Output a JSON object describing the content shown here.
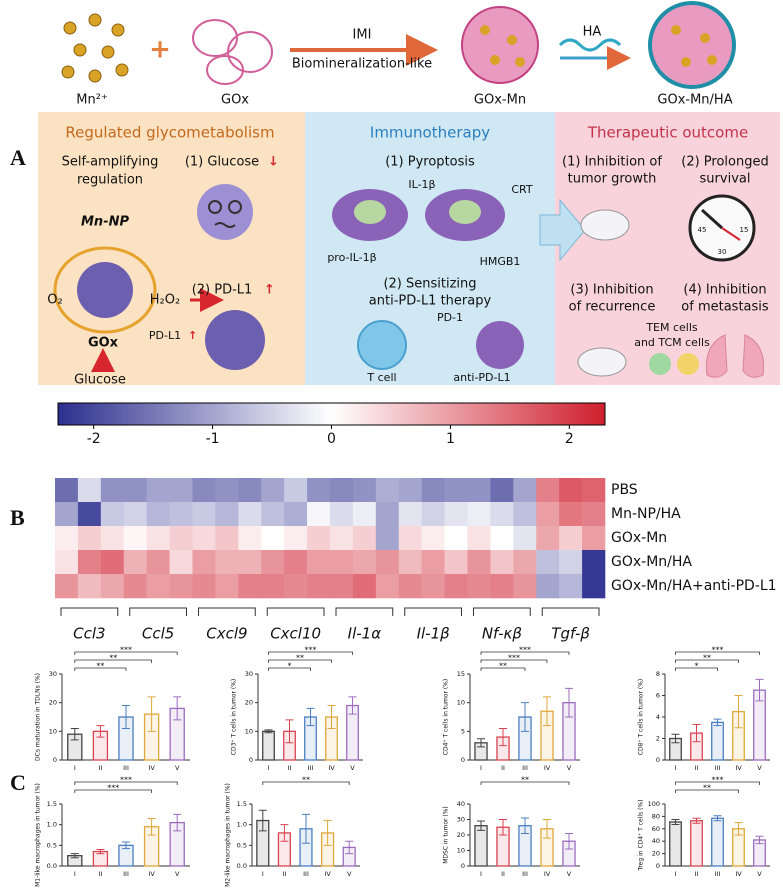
{
  "panel_labels": [
    "A",
    "B",
    "C"
  ],
  "schematic": {
    "mn": "Mn²⁺",
    "plus": "+",
    "gox": "GOx",
    "imi": "IMI",
    "biomin": "Biomineralization-like",
    "goxmn": "GOx-Mn",
    "ha": "HA",
    "goxmnha": "GOx-Mn/HA",
    "t1": "Regulated glycometabolism",
    "self1": "Self-amplifying",
    "self2": "regulation",
    "glu1": "(1) Glucose",
    "down": "↓",
    "mnnp": "Mn-NP",
    "o2": "O₂",
    "h2o2": "H₂O₂",
    "gox2": "GOx",
    "glucose": "Glucose",
    "pdl1a": "(2) PD-L1",
    "up": "↑",
    "pdl1b": "PD-L1",
    "up2": "↑",
    "t2": "Immunotherapy",
    "pyro": "(1) Pyroptosis",
    "il1b": "IL-1β",
    "crt": "CRT",
    "proil": "pro-IL-1β",
    "hmgb1": "HMGB1",
    "sens1": "(2) Sensitizing",
    "sens2": "anti-PD-L1 therapy",
    "pd1": "PD-1",
    "tcell": "T cell",
    "antipd": "anti-PD-L1",
    "t3": "Therapeutic outcome",
    "o1a": "(1) Inhibition of",
    "o1b": "tumor growth",
    "o2a": "(2) Prolonged",
    "o2b": "survival",
    "o3a": "(3) Inhibition",
    "o3b": "of recurrence",
    "o4a": "(4) Inhibition",
    "o4b": "of metastasis",
    "tem": "TEM cells",
    "tcm": "and TCM cells",
    "c45": "45",
    "c15": "15",
    "c30": "30"
  },
  "chart_data": [
    {
      "type": "heatmap",
      "clim": [
        -2.3,
        2.3
      ],
      "cticks": [
        -2,
        -1,
        0,
        1,
        2
      ],
      "colormap": [
        "#2d2f8e",
        "#ffffff",
        "#cf1f2e"
      ],
      "rows": [
        "PBS",
        "Mn-NP/HA",
        "GOx-Mn",
        "GOx-Mn/HA",
        "GOx-Mn/HA+anti-PD-L1"
      ],
      "groups": [
        "Ccl3",
        "Ccl5",
        "Cxcl9",
        "Cxcl10",
        "Il-1α",
        "Il-1β",
        "Nf-κβ",
        "Tgf-β"
      ],
      "values": [
        [
          -1.6,
          -0.4,
          -1.2,
          -1.2,
          -1.0,
          -1.0,
          -1.3,
          -1.2,
          -1.3,
          -1.0,
          -0.6,
          -1.2,
          -1.3,
          -1.2,
          -0.9,
          -1.0,
          -1.3,
          -1.2,
          -1.2,
          -1.6,
          -1.0,
          1.3,
          1.7,
          1.6
        ],
        [
          -1.0,
          -2.0,
          -0.6,
          -0.5,
          -0.8,
          -0.7,
          -0.6,
          -0.8,
          -0.4,
          -0.7,
          -0.9,
          -0.1,
          -0.4,
          -0.2,
          -1.0,
          -0.3,
          -0.5,
          -0.3,
          -0.2,
          -0.4,
          -0.7,
          1.0,
          1.4,
          1.3
        ],
        [
          0.2,
          0.5,
          0.3,
          0.1,
          0.3,
          0.5,
          0.4,
          0.6,
          0.2,
          0.0,
          0.2,
          0.5,
          0.3,
          0.5,
          -1.0,
          0.4,
          0.2,
          0.0,
          0.3,
          0.0,
          -0.3,
          0.9,
          0.5,
          1.0
        ],
        [
          0.3,
          1.3,
          1.5,
          0.8,
          1.1,
          0.4,
          1.0,
          0.8,
          0.8,
          1.1,
          1.3,
          1.0,
          1.0,
          0.9,
          1.1,
          0.7,
          1.0,
          0.6,
          1.1,
          0.6,
          0.9,
          -0.7,
          -0.5,
          -2.2
        ],
        [
          1.1,
          0.7,
          0.9,
          1.2,
          1.0,
          1.1,
          1.2,
          1.0,
          1.3,
          1.3,
          1.2,
          1.3,
          1.3,
          1.5,
          1.0,
          1.2,
          1.1,
          1.3,
          1.2,
          1.3,
          1.1,
          -1.0,
          -0.8,
          -2.2
        ]
      ]
    },
    {
      "type": "bar",
      "ylabel": "DCs maturation in TDLNs (%)",
      "categories": [
        "I",
        "II",
        "III",
        "IV",
        "V"
      ],
      "values": [
        9,
        10,
        15,
        16,
        18
      ],
      "errors": [
        2,
        2,
        4,
        6,
        4
      ],
      "colors": [
        "#444444",
        "#d9434f",
        "#4a7fc1",
        "#e0a83a",
        "#9b6cc0"
      ],
      "ylim": [
        0,
        30
      ],
      "yticks": [
        0,
        10,
        20,
        30
      ],
      "sig": [
        {
          "label": "***",
          "pair": [
            "I",
            "V"
          ]
        },
        {
          "label": "**",
          "pair": [
            "I",
            "IV"
          ]
        },
        {
          "label": "**",
          "pair": [
            "I",
            "III"
          ]
        }
      ]
    },
    {
      "type": "bar",
      "ylabel": "CD3⁺ T cells in tumor (%)",
      "categories": [
        "I",
        "II",
        "III",
        "IV",
        "V"
      ],
      "values": [
        10,
        10,
        15,
        15,
        19
      ],
      "errors": [
        0.5,
        4,
        3,
        4,
        3
      ],
      "colors": [
        "#444444",
        "#d9434f",
        "#4a7fc1",
        "#e0a83a",
        "#9b6cc0"
      ],
      "ylim": [
        0,
        30
      ],
      "yticks": [
        0,
        10,
        20,
        30
      ],
      "sig": [
        {
          "label": "***",
          "pair": [
            "I",
            "V"
          ]
        },
        {
          "label": "**",
          "pair": [
            "I",
            "IV"
          ]
        },
        {
          "label": "*",
          "pair": [
            "I",
            "III"
          ]
        }
      ]
    },
    {
      "type": "bar",
      "ylabel": "CD4⁺ T cells in tumor (%)",
      "categories": [
        "I",
        "II",
        "III",
        "IV",
        "V"
      ],
      "values": [
        3,
        4,
        7.5,
        8.5,
        10
      ],
      "errors": [
        0.7,
        1.5,
        2.5,
        2.5,
        2.5
      ],
      "colors": [
        "#444444",
        "#d9434f",
        "#4a7fc1",
        "#e0a83a",
        "#9b6cc0"
      ],
      "ylim": [
        0,
        15
      ],
      "yticks": [
        0,
        5,
        10,
        15
      ],
      "sig": [
        {
          "label": "***",
          "pair": [
            "I",
            "V"
          ]
        },
        {
          "label": "***",
          "pair": [
            "I",
            "IV"
          ]
        },
        {
          "label": "**",
          "pair": [
            "I",
            "III"
          ]
        }
      ]
    },
    {
      "type": "bar",
      "ylabel": "CD8⁺ T cells in tumor (%)",
      "categories": [
        "I",
        "II",
        "III",
        "IV",
        "V"
      ],
      "values": [
        2,
        2.5,
        3.5,
        4.5,
        6.5
      ],
      "errors": [
        0.4,
        0.8,
        0.3,
        1.5,
        1
      ],
      "colors": [
        "#444444",
        "#d9434f",
        "#4a7fc1",
        "#e0a83a",
        "#9b6cc0"
      ],
      "ylim": [
        0,
        8
      ],
      "yticks": [
        0,
        2,
        4,
        6,
        8
      ],
      "sig": [
        {
          "label": "***",
          "pair": [
            "I",
            "V"
          ]
        },
        {
          "label": "**",
          "pair": [
            "I",
            "IV"
          ]
        },
        {
          "label": "*",
          "pair": [
            "I",
            "III"
          ]
        }
      ]
    },
    {
      "type": "bar",
      "ylabel": "M1-like macrophages in tumor (%)",
      "categories": [
        "I",
        "II",
        "III",
        "IV",
        "V"
      ],
      "values": [
        0.25,
        0.35,
        0.5,
        0.95,
        1.05
      ],
      "errors": [
        0.05,
        0.05,
        0.08,
        0.2,
        0.2
      ],
      "colors": [
        "#444444",
        "#d9434f",
        "#4a7fc1",
        "#e0a83a",
        "#9b6cc0"
      ],
      "ylim": [
        0,
        1.5
      ],
      "yticks": [
        {
          "value": 0,
          "label": "0.0"
        },
        0.5,
        {
          "value": 1,
          "label": "1.0"
        },
        1.5
      ],
      "sig": [
        {
          "label": "***",
          "pair": [
            "I",
            "V"
          ]
        },
        {
          "label": "***",
          "pair": [
            "I",
            "IV"
          ]
        }
      ]
    },
    {
      "type": "bar",
      "ylabel": "M2-like macrophages in tumor (%)",
      "categories": [
        "I",
        "II",
        "III",
        "IV",
        "V"
      ],
      "values": [
        1.1,
        0.8,
        0.9,
        0.8,
        0.45
      ],
      "errors": [
        0.25,
        0.2,
        0.35,
        0.3,
        0.15
      ],
      "colors": [
        "#444444",
        "#d9434f",
        "#4a7fc1",
        "#e0a83a",
        "#9b6cc0"
      ],
      "ylim": [
        0,
        1.5
      ],
      "yticks": [
        {
          "value": 0,
          "label": "0.0"
        },
        0.5,
        {
          "value": 1,
          "label": "1.0"
        },
        1.5
      ],
      "sig": [
        {
          "label": "**",
          "pair": [
            "I",
            "V"
          ]
        }
      ]
    },
    {
      "type": "bar",
      "ylabel": "MDSC in tumor (%)",
      "categories": [
        "I",
        "II",
        "III",
        "IV",
        "V"
      ],
      "values": [
        26,
        25,
        26,
        24,
        16
      ],
      "errors": [
        3,
        5,
        5,
        6,
        5
      ],
      "colors": [
        "#444444",
        "#d9434f",
        "#4a7fc1",
        "#e0a83a",
        "#9b6cc0"
      ],
      "ylim": [
        0,
        40
      ],
      "yticks": [
        0,
        10,
        20,
        30,
        40
      ],
      "sig": [
        {
          "label": "**",
          "pair": [
            "I",
            "V"
          ]
        }
      ]
    },
    {
      "type": "bar",
      "ylabel": "Treg in CD4⁺ T cells (%)",
      "categories": [
        "I",
        "II",
        "III",
        "IV",
        "V"
      ],
      "values": [
        71,
        73,
        77,
        60,
        42
      ],
      "errors": [
        4,
        4,
        4,
        10,
        6
      ],
      "colors": [
        "#444444",
        "#d9434f",
        "#4a7fc1",
        "#e0a83a",
        "#9b6cc0"
      ],
      "ylim": [
        0,
        100
      ],
      "yticks": [
        0,
        20,
        40,
        60,
        80,
        100
      ],
      "sig": [
        {
          "label": "***",
          "pair": [
            "I",
            "V"
          ]
        },
        {
          "label": "**",
          "pair": [
            "I",
            "IV"
          ]
        }
      ]
    }
  ]
}
